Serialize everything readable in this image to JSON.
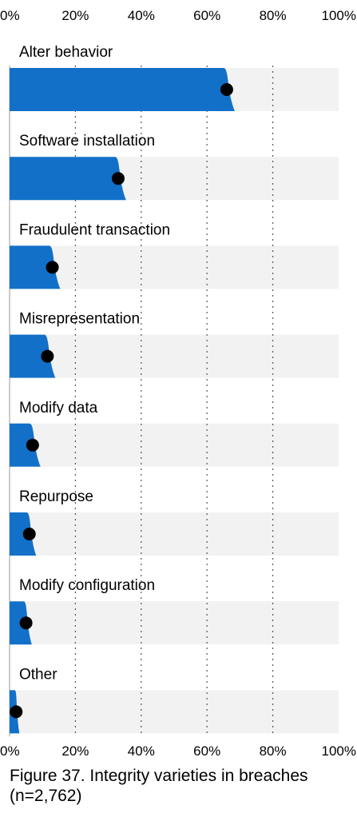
{
  "chart_data": {
    "type": "bar",
    "xlim": [
      0,
      100
    ],
    "tick_labels": [
      "0%",
      "20%",
      "40%",
      "60%",
      "80%",
      "100%"
    ],
    "categories": [
      "Alter behavior",
      "Software installation",
      "Fraudulent transaction",
      "Misrepresentation",
      "Modify data",
      "Repurpose",
      "Modify configuration",
      "Other"
    ],
    "values": [
      66,
      33,
      13,
      11.5,
      7,
      6,
      5,
      2
    ],
    "grid": "dotted vertical lines at 20% intervals",
    "bar_color": "#1270c8",
    "track_color": "#f2f2f2",
    "marker_color": "#000000"
  },
  "caption": {
    "line1": "Figure 37. Integrity varieties in breaches",
    "line2": "(n=2,762)"
  }
}
